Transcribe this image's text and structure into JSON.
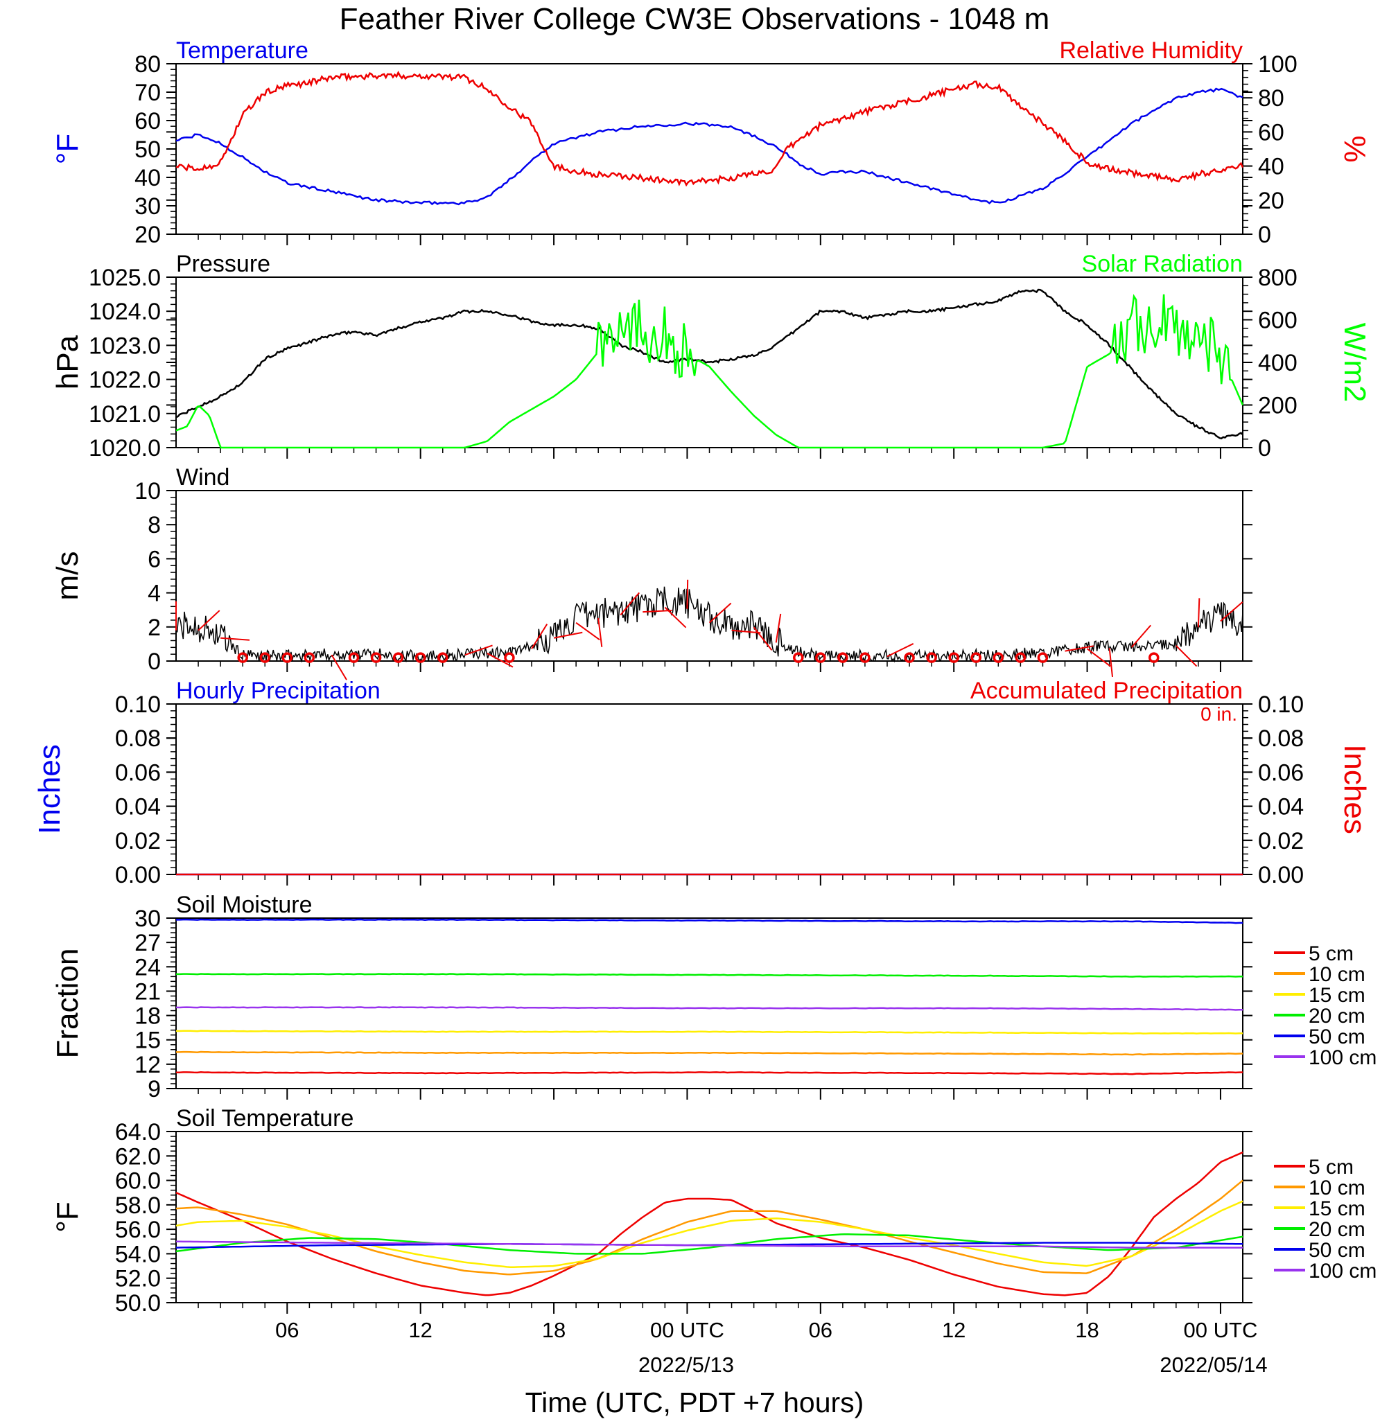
{
  "title": "Feather River College CW3E Observations - 1048 m",
  "x_axis": {
    "label": "Time (UTC, PDT +7 hours)",
    "tick_labels": [
      "06",
      "12",
      "18",
      "00 UTC",
      "06",
      "12",
      "18",
      "00 UTC"
    ],
    "tick_hours": [
      6,
      12,
      18,
      24,
      30,
      36,
      42,
      48
    ],
    "date_labels": [
      {
        "hour": 24,
        "text": "2022/5/13"
      },
      {
        "hour": 48,
        "text": "2022/05/14"
      }
    ],
    "range_hours": [
      1,
      49
    ]
  },
  "colors": {
    "temperature": "#0000ee",
    "humidity": "#ee0000",
    "pressure": "#000000",
    "solar": "#00ff00",
    "wind": "#000000",
    "barb": "#ee0000",
    "precip_left": "#0000ee",
    "precip_right": "#ee0000",
    "depth_5": "#ee0000",
    "depth_10": "#ff9900",
    "depth_15": "#ffee00",
    "depth_20": "#00ee00",
    "depth_50": "#0000ee",
    "depth_100": "#9933ee"
  },
  "legend_depths": [
    "5 cm",
    "10 cm",
    "15 cm",
    "20 cm",
    "50 cm",
    "100 cm"
  ],
  "chart_data": [
    {
      "type": "line",
      "title_left": "Temperature",
      "title_right": "Relative Humidity",
      "ylabel_left": "°F",
      "ylabel_right": "%",
      "ylim_left": [
        20,
        80
      ],
      "yticks_left": [
        "20",
        "30",
        "40",
        "50",
        "60",
        "70",
        "80"
      ],
      "ylim_right": [
        0,
        100
      ],
      "yticks_right": [
        "0",
        "20",
        "40",
        "60",
        "80",
        "100"
      ],
      "series": [
        {
          "name": "Temperature",
          "axis": "left",
          "x": [
            1,
            2,
            3,
            4,
            5,
            6,
            8,
            10,
            12,
            14,
            15,
            16,
            17,
            18,
            20,
            22,
            24,
            26,
            28,
            29,
            30,
            31,
            32,
            34,
            36,
            37,
            38,
            40,
            42,
            44,
            46,
            47,
            48,
            49
          ],
          "values": [
            53,
            55,
            52,
            47,
            42,
            38,
            35,
            32,
            31,
            31,
            33,
            39,
            46,
            52,
            56,
            58,
            59,
            58,
            51,
            45,
            41,
            42,
            42,
            38,
            34,
            32,
            31,
            36,
            47,
            59,
            68,
            70,
            71,
            68
          ]
        },
        {
          "name": "Relative Humidity",
          "axis": "right",
          "x": [
            1,
            2,
            3,
            4,
            5,
            6,
            7,
            8,
            10,
            12,
            14,
            15,
            16,
            17,
            18,
            19,
            20,
            22,
            24,
            26,
            28,
            28.5,
            29,
            30,
            31,
            32,
            34,
            36,
            37,
            38,
            40,
            41,
            42,
            43,
            44,
            46,
            48,
            49
          ],
          "values": [
            40,
            38,
            42,
            70,
            83,
            87,
            89,
            92,
            93,
            93,
            92,
            85,
            75,
            65,
            40,
            37,
            35,
            33,
            30,
            33,
            38,
            50,
            55,
            64,
            68,
            72,
            78,
            85,
            88,
            86,
            65,
            55,
            42,
            38,
            36,
            32,
            38,
            40
          ]
        }
      ]
    },
    {
      "type": "line",
      "title_left": "Pressure",
      "title_right": "Solar Radiation",
      "ylabel_left": "hPa",
      "ylabel_right": "W/m2",
      "ylim_left": [
        1020,
        1025
      ],
      "yticks_left": [
        "1020.0",
        "1021.0",
        "1022.0",
        "1023.0",
        "1024.0",
        "1025.0"
      ],
      "ylim_right": [
        0,
        800
      ],
      "yticks_right": [
        "0",
        "200",
        "400",
        "600",
        "800"
      ],
      "series": [
        {
          "name": "Pressure",
          "axis": "left",
          "x": [
            1,
            2,
            3,
            4,
            5,
            6,
            7,
            8,
            9,
            10,
            11,
            12,
            13,
            14,
            15,
            16,
            17,
            18,
            19,
            20,
            21,
            22,
            23,
            24,
            25,
            26,
            27,
            28,
            29,
            30,
            31,
            32,
            33,
            34,
            35,
            36,
            37,
            38,
            39,
            40,
            41,
            42,
            43,
            44,
            45,
            46,
            47,
            48,
            49
          ],
          "values": [
            1020.9,
            1021.2,
            1021.5,
            1021.9,
            1022.6,
            1022.9,
            1023.1,
            1023.3,
            1023.4,
            1023.3,
            1023.5,
            1023.7,
            1023.8,
            1024.0,
            1024.0,
            1023.9,
            1023.7,
            1023.6,
            1023.6,
            1023.5,
            1023.0,
            1022.8,
            1022.5,
            1022.6,
            1022.5,
            1022.6,
            1022.7,
            1023.0,
            1023.5,
            1024.0,
            1024.0,
            1023.8,
            1023.9,
            1024.0,
            1024.0,
            1024.1,
            1024.2,
            1024.3,
            1024.6,
            1024.6,
            1024.0,
            1023.6,
            1023.0,
            1022.3,
            1021.6,
            1021.0,
            1020.6,
            1020.3,
            1020.4
          ]
        },
        {
          "name": "Solar Radiation",
          "axis": "right",
          "x": [
            1,
            1.5,
            2,
            2.5,
            3,
            14,
            15,
            16,
            17,
            18,
            19,
            20,
            21,
            22,
            23,
            24,
            25,
            26,
            27,
            28,
            29,
            40,
            41,
            42,
            43,
            44,
            45,
            46,
            47,
            48,
            49
          ],
          "values": [
            80,
            100,
            200,
            150,
            0,
            0,
            30,
            120,
            180,
            240,
            320,
            450,
            630,
            560,
            520,
            440,
            380,
            260,
            150,
            60,
            0,
            0,
            20,
            380,
            440,
            560,
            580,
            560,
            540,
            440,
            200
          ]
        }
      ]
    },
    {
      "type": "line",
      "title_left": "Wind",
      "ylabel_left": "m/s",
      "ylim_left": [
        0,
        10
      ],
      "yticks_left": [
        "0",
        "2",
        "4",
        "6",
        "8",
        "10"
      ],
      "series": [
        {
          "name": "Wind",
          "axis": "left",
          "x": [
            1,
            2,
            3,
            4,
            5,
            6,
            8,
            10,
            12,
            14,
            15,
            16,
            17,
            18,
            19,
            20,
            21,
            22,
            23,
            24,
            25,
            26,
            27,
            28,
            29,
            30,
            32,
            34,
            36,
            38,
            40,
            42,
            44,
            45,
            46,
            47,
            48,
            49
          ],
          "values": [
            2.0,
            2.0,
            1.5,
            0.3,
            0.3,
            0.3,
            0.4,
            0.4,
            0.3,
            0.4,
            0.5,
            0.5,
            0.8,
            1.5,
            2.5,
            2.8,
            3.0,
            3.2,
            3.5,
            3.4,
            2.5,
            2.0,
            2.2,
            1.2,
            0.5,
            0.3,
            0.3,
            0.3,
            0.3,
            0.4,
            0.5,
            0.8,
            0.9,
            0.9,
            1.0,
            2.2,
            2.6,
            2.2
          ]
        }
      ],
      "barbs": {
        "hours": [
          1,
          2,
          3,
          4,
          5,
          6,
          7,
          8,
          9,
          10,
          11,
          12,
          13,
          14,
          15,
          16,
          17,
          18,
          19,
          20,
          21,
          22,
          23,
          24,
          25,
          26,
          27,
          28,
          29,
          30,
          31,
          32,
          33,
          34,
          35,
          36,
          37,
          38,
          39,
          40,
          41,
          42,
          43,
          44,
          45,
          46,
          47,
          48
        ],
        "calm_hours": [
          4,
          5,
          6,
          7,
          9,
          10,
          11,
          12,
          13,
          16,
          29,
          30,
          31,
          32,
          34,
          35,
          36,
          37,
          38,
          39,
          40,
          45
        ]
      }
    },
    {
      "type": "line",
      "title_left": "Hourly Precipitation",
      "title_right": "Accumulated Precipitation",
      "annotation": "0 in.",
      "ylabel_left": "Inches",
      "ylabel_right": "Inches",
      "ylim_left": [
        0,
        0.1
      ],
      "yticks_left": [
        "0.00",
        "0.02",
        "0.04",
        "0.06",
        "0.08",
        "0.10"
      ],
      "ylim_right": [
        0,
        0.1
      ],
      "yticks_right": [
        "0.00",
        "0.02",
        "0.04",
        "0.06",
        "0.08",
        "0.10"
      ],
      "series": [
        {
          "name": "Hourly Precipitation",
          "axis": "left",
          "x": [
            1,
            49
          ],
          "values": [
            0,
            0
          ]
        },
        {
          "name": "Accumulated Precipitation",
          "axis": "right",
          "x": [
            1,
            49
          ],
          "values": [
            0,
            0
          ]
        }
      ]
    },
    {
      "type": "line",
      "title_left": "Soil Moisture",
      "ylabel_left": "Fraction",
      "ylim_left": [
        9,
        30
      ],
      "yticks_left": [
        "9",
        "12",
        "15",
        "18",
        "21",
        "24",
        "27",
        "30"
      ],
      "series": [
        {
          "name": "5 cm",
          "axis": "left",
          "x": [
            1,
            13,
            25,
            37,
            44,
            49
          ],
          "values": [
            11.0,
            10.9,
            11.0,
            10.9,
            10.8,
            11.0
          ]
        },
        {
          "name": "10 cm",
          "axis": "left",
          "x": [
            1,
            13,
            25,
            37,
            44,
            49
          ],
          "values": [
            13.5,
            13.4,
            13.4,
            13.3,
            13.2,
            13.3
          ]
        },
        {
          "name": "15 cm",
          "axis": "left",
          "x": [
            1,
            13,
            25,
            37,
            44,
            49
          ],
          "values": [
            16.1,
            16.0,
            16.0,
            15.9,
            15.8,
            15.8
          ]
        },
        {
          "name": "20 cm",
          "axis": "left",
          "x": [
            1,
            13,
            25,
            37,
            44,
            49
          ],
          "values": [
            23.1,
            23.1,
            23.0,
            22.9,
            22.8,
            22.8
          ]
        },
        {
          "name": "50 cm",
          "axis": "left",
          "x": [
            1,
            13,
            25,
            37,
            44,
            49
          ],
          "values": [
            29.8,
            29.8,
            29.7,
            29.6,
            29.6,
            29.4
          ]
        },
        {
          "name": "100 cm",
          "axis": "left",
          "x": [
            1,
            13,
            25,
            37,
            44,
            49
          ],
          "values": [
            19.0,
            19.0,
            18.9,
            18.9,
            18.8,
            18.7
          ]
        }
      ]
    },
    {
      "type": "line",
      "title_left": "Soil Temperature",
      "ylabel_left": "°F",
      "ylim_left": [
        50,
        64
      ],
      "yticks_left": [
        "50.0",
        "52.0",
        "54.0",
        "56.0",
        "58.0",
        "60.0",
        "62.0",
        "64.0"
      ],
      "series": [
        {
          "name": "5 cm",
          "axis": "left",
          "x": [
            1,
            2,
            4,
            6,
            8,
            10,
            12,
            14,
            15,
            16,
            17,
            18,
            20,
            21,
            22,
            23,
            24,
            25,
            26,
            27,
            28,
            30,
            32,
            34,
            36,
            38,
            40,
            41,
            42,
            43,
            44,
            45,
            46,
            47,
            48,
            49
          ],
          "values": [
            59.0,
            58.2,
            56.7,
            55.0,
            53.6,
            52.4,
            51.4,
            50.8,
            50.6,
            50.8,
            51.4,
            52.2,
            54.0,
            55.6,
            57.0,
            58.2,
            58.5,
            58.5,
            58.4,
            57.5,
            56.5,
            55.3,
            54.5,
            53.5,
            52.3,
            51.3,
            50.7,
            50.6,
            50.8,
            52.2,
            54.5,
            57.0,
            58.5,
            59.8,
            61.5,
            62.3
          ]
        },
        {
          "name": "10 cm",
          "axis": "left",
          "x": [
            1,
            2,
            4,
            6,
            8,
            10,
            12,
            14,
            16,
            18,
            20,
            22,
            24,
            26,
            28,
            30,
            32,
            34,
            36,
            38,
            40,
            42,
            44,
            46,
            48,
            49
          ],
          "values": [
            57.7,
            57.8,
            57.2,
            56.4,
            55.3,
            54.2,
            53.3,
            52.6,
            52.3,
            52.6,
            53.6,
            55.2,
            56.6,
            57.5,
            57.5,
            56.8,
            56.0,
            55.0,
            54.1,
            53.2,
            52.5,
            52.4,
            53.8,
            56.0,
            58.5,
            60.0
          ]
        },
        {
          "name": "15 cm",
          "axis": "left",
          "x": [
            1,
            2,
            4,
            6,
            8,
            10,
            12,
            14,
            16,
            18,
            20,
            22,
            24,
            26,
            28,
            30,
            32,
            34,
            36,
            38,
            40,
            42,
            44,
            46,
            48,
            49
          ],
          "values": [
            56.3,
            56.6,
            56.7,
            56.2,
            55.5,
            54.6,
            53.9,
            53.3,
            52.9,
            53.0,
            53.6,
            54.9,
            55.9,
            56.7,
            56.9,
            56.6,
            56.0,
            55.3,
            54.7,
            54.0,
            53.3,
            53.0,
            53.8,
            55.5,
            57.5,
            58.3
          ]
        },
        {
          "name": "20 cm",
          "axis": "left",
          "x": [
            1,
            4,
            7,
            10,
            13,
            16,
            19,
            22,
            25,
            28,
            31,
            34,
            37,
            40,
            43,
            46,
            49
          ],
          "values": [
            54.2,
            54.9,
            55.3,
            55.2,
            54.8,
            54.3,
            54.0,
            54.0,
            54.5,
            55.2,
            55.6,
            55.5,
            55.0,
            54.6,
            54.3,
            54.5,
            55.4
          ]
        },
        {
          "name": "50 cm",
          "axis": "left",
          "x": [
            1,
            8,
            16,
            24,
            32,
            40,
            44,
            49
          ],
          "values": [
            54.5,
            54.7,
            54.8,
            54.7,
            54.8,
            54.9,
            54.9,
            54.8
          ]
        },
        {
          "name": "100 cm",
          "axis": "left",
          "x": [
            1,
            8,
            16,
            24,
            32,
            40,
            44,
            49
          ],
          "values": [
            55.0,
            54.9,
            54.8,
            54.7,
            54.6,
            54.6,
            54.5,
            54.5
          ]
        }
      ]
    }
  ]
}
